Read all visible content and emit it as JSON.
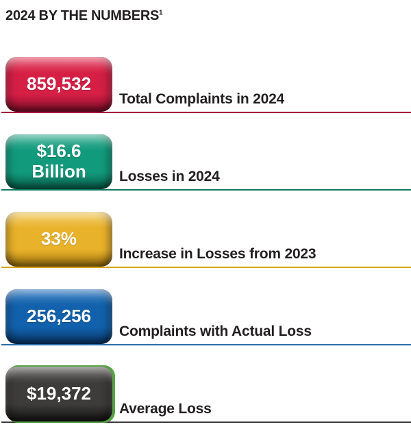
{
  "title": {
    "text": "2024 BY THE NUMBERS",
    "superscript": "1"
  },
  "chart_data": {
    "type": "table",
    "title": "2024 BY THE NUMBERS",
    "footnote_marker": "1",
    "categories": [
      "Total Complaints in 2024",
      "Losses in 2024",
      "Increase in Losses from 2023",
      "Complaints with Actual Loss",
      "Average Loss"
    ],
    "values": [
      859532,
      16600000000,
      "33%",
      256256,
      19372
    ]
  },
  "stats": [
    {
      "value": "859,532",
      "label": "Total Complaints in 2024",
      "badge_color": "#d51f45",
      "badge_top": "#ea5c76",
      "badge_bottom": "#8f1030",
      "line_color": "#a6173b"
    },
    {
      "value": "$16.6\nBillion",
      "label": "Losses in 2024",
      "badge_color": "#129a7c",
      "badge_top": "#4cb89e",
      "badge_bottom": "#0a6b55",
      "line_color": "#0e7a62"
    },
    {
      "value": "33%",
      "label": "Increase in Losses from 2023",
      "badge_color": "#e9b22b",
      "badge_top": "#f4d06f",
      "badge_bottom": "#b07f12",
      "line_color": "#d9a41d"
    },
    {
      "value": "256,256",
      "label": "Complaints with Actual Loss",
      "badge_color": "#1261ac",
      "badge_top": "#4687c7",
      "badge_bottom": "#0a3f78",
      "line_color": "#2b6ca8"
    },
    {
      "value": "$19,372",
      "label": "Average Loss",
      "badge_color": "#3d3c3a",
      "badge_top": "#6f6e6b",
      "badge_bottom": "#181817",
      "line_color": "#3a3a38",
      "rim_color": "#57a046"
    }
  ]
}
